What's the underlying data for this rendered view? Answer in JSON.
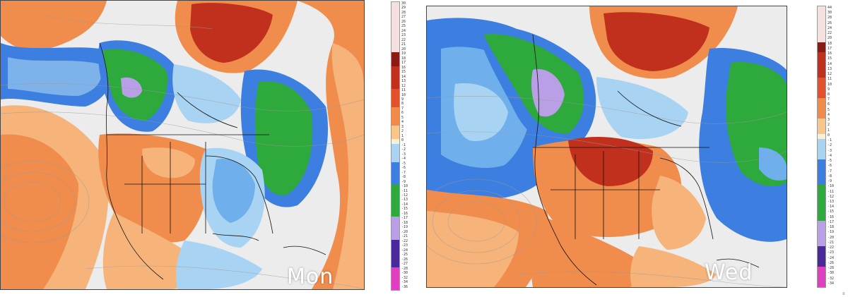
{
  "panels": [
    {
      "label": "Mon",
      "scale_ticks": [
        "30",
        "29",
        "28",
        "27",
        "26",
        "25",
        "24",
        "23",
        "22",
        "21",
        "20",
        "19",
        "18",
        "17",
        "16",
        "15",
        "14",
        "13",
        "12",
        "11",
        "10",
        "9",
        "8",
        "7",
        "6",
        "5",
        "4",
        "3",
        "2",
        "1",
        "0",
        "-1",
        "-2",
        "-3",
        "-4",
        "-5",
        "-6",
        "-7",
        "-8",
        "-9",
        "-10",
        "-11",
        "-12",
        "-13",
        "-14",
        "-15",
        "-16",
        "-17",
        "-18",
        "-19",
        "-20",
        "-21",
        "-22",
        "-23",
        "-24",
        "-25",
        "-26",
        "-27",
        "-28",
        "-30",
        "-32",
        "-34",
        "-36"
      ]
    },
    {
      "label": "Wed",
      "scale_ticks": [
        "44",
        "30",
        "28",
        "26",
        "24",
        "22",
        "20",
        "18",
        "17",
        "16",
        "15",
        "14",
        "13",
        "12",
        "11",
        "10",
        "9",
        "8",
        "7",
        "6",
        "5",
        "4",
        "3",
        "2",
        "1",
        "0",
        "-1",
        "-2",
        "-3",
        "-4",
        "-5",
        "-6",
        "-7",
        "-8",
        "-9",
        "-10",
        "-11",
        "-12",
        "-13",
        "-14",
        "-15",
        "-16",
        "-17",
        "-18",
        "-19",
        "-20",
        "-21",
        "-22",
        "-23",
        "-24",
        "-26",
        "-28",
        "-30",
        "-32",
        "-34"
      ]
    }
  ],
  "colors": {
    "warm_strong": "#c0301c",
    "warm": "#f28a4a",
    "warm_light": "#f8c58a",
    "neutral": "#e6e6e6",
    "cool_light": "#a9d3f2",
    "cool": "#3c7fe0",
    "cold": "#2eaa3c",
    "very_cold": "#b9a0e6"
  },
  "corner_mark": "≡"
}
